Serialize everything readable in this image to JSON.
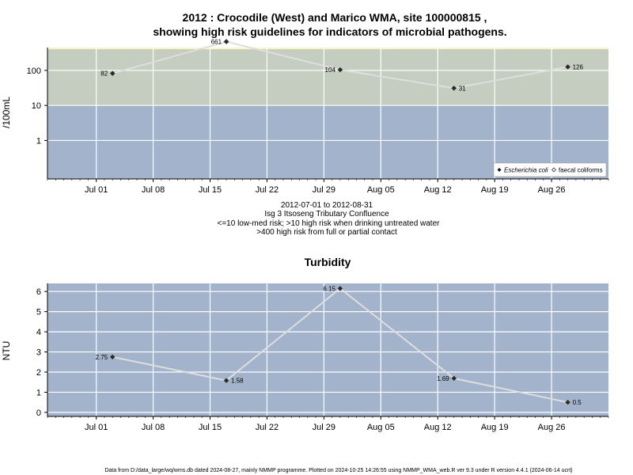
{
  "chart_data": [
    {
      "type": "line",
      "title_line1": "2012 : Crocodile (West) and Marico WMA, site 100000815 ,",
      "title_line2": "showing high risk guidelines for indicators of microbial pathogens.",
      "ylabel": "/100mL",
      "yscale": "log",
      "yticks": [
        "1",
        "10",
        "100"
      ],
      "ytick_values": [
        1,
        10,
        100
      ],
      "ylim": [
        0.08,
        450
      ],
      "xlim": [
        "2012-06-25",
        "2012-09-02"
      ],
      "xticks": [
        "Jul 01",
        "Jul 08",
        "Jul 15",
        "Jul 22",
        "Jul 29",
        "Aug 05",
        "Aug 12",
        "Aug 19",
        "Aug 26"
      ],
      "xtick_dates": [
        "2012-07-01",
        "2012-07-08",
        "2012-07-15",
        "2012-07-22",
        "2012-07-29",
        "2012-08-05",
        "2012-08-12",
        "2012-08-19",
        "2012-08-26"
      ],
      "bands": [
        {
          "from": 0.08,
          "to": 10,
          "color": "#a2b3cb"
        },
        {
          "from": 10,
          "to": 400,
          "color": "#c5ccc0"
        },
        {
          "from": 400,
          "to": 450,
          "color": "#fbf5c8"
        }
      ],
      "series": [
        {
          "name": "Escherichia coli",
          "x": [
            "2012-07-03",
            "2012-07-17",
            "2012-07-31",
            "2012-08-14",
            "2012-08-28"
          ],
          "values": [
            82,
            661,
            104,
            31,
            126
          ],
          "labels": [
            "82",
            "661",
            "104",
            "31",
            "126"
          ]
        }
      ],
      "legend": {
        "position": "bottom-right",
        "entries": [
          "Escherichia coli",
          "faecal coliforms"
        ]
      },
      "subtitle_lines": [
        "2012-07-01 to 2012-08-31",
        "Isg 3 Itsoseng Tributary Confluence",
        "<=10 low-med risk; >10 high risk when drinking untreated water",
        ">400 high risk from full or partial contact"
      ]
    },
    {
      "type": "line",
      "title": "Turbidity",
      "ylabel": "NTU",
      "yticks": [
        "0",
        "1",
        "2",
        "3",
        "4",
        "5",
        "6"
      ],
      "ytick_values": [
        0,
        1,
        2,
        3,
        4,
        5,
        6
      ],
      "ylim": [
        -0.2,
        6.4
      ],
      "xlim": [
        "2012-06-25",
        "2012-09-02"
      ],
      "xticks": [
        "Jul 01",
        "Jul 08",
        "Jul 15",
        "Jul 22",
        "Jul 29",
        "Aug 05",
        "Aug 12",
        "Aug 19",
        "Aug 26"
      ],
      "xtick_dates": [
        "2012-07-01",
        "2012-07-08",
        "2012-07-15",
        "2012-07-22",
        "2012-07-29",
        "2012-08-05",
        "2012-08-12",
        "2012-08-19",
        "2012-08-26"
      ],
      "series": [
        {
          "x": [
            "2012-07-03",
            "2012-07-17",
            "2012-07-31",
            "2012-08-14",
            "2012-08-28"
          ],
          "values": [
            2.75,
            1.58,
            6.15,
            1.69,
            0.5
          ],
          "labels": [
            "2.75",
            "1.58",
            "6.15",
            "1.69",
            "0.5"
          ]
        }
      ]
    }
  ],
  "footer": "Data from D:/data_large/wq/wms.db dated 2024-08-27, mainly NMMP programme. Plotted on 2024-10-25 14:26:55 using NMMP_WMA_web.R ver 9.3 under R version 4.4.1 (2024-06-14 ucrt)",
  "colors": {
    "panel_bg": "#a2b3cb",
    "grid": "#ffffff",
    "line": "#dedede",
    "marker": "#2a2a2a"
  }
}
